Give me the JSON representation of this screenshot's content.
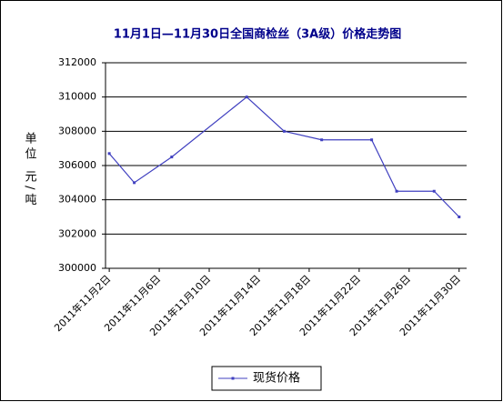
{
  "chart_data": {
    "type": "line",
    "title": "11月1日—11月30日全国商检丝（3A级）价格走势图",
    "y_label": "单位 元/吨",
    "xlim": [
      1.7,
      30.6
    ],
    "xticks": [
      {
        "value": 2,
        "label": "2011年11月2日"
      },
      {
        "value": 6,
        "label": "2011年11月6日"
      },
      {
        "value": 10,
        "label": "2011年11月10日"
      },
      {
        "value": 14,
        "label": "2011年11月14日"
      },
      {
        "value": 18,
        "label": "2011年11月18日"
      },
      {
        "value": 22,
        "label": "2011年11月22日"
      },
      {
        "value": 26,
        "label": "2011年11月26日"
      },
      {
        "value": 30,
        "label": "2011年11月30日"
      }
    ],
    "ylim": [
      300000,
      312000
    ],
    "yticks": [
      300000,
      302000,
      304000,
      306000,
      308000,
      310000,
      312000
    ],
    "grid": true,
    "legend": "bottom",
    "series": [
      {
        "name": "现货价格",
        "color": "#4040c0",
        "x": [
          2,
          4,
          7,
          13,
          16,
          19,
          23,
          25,
          28,
          30
        ],
        "values": [
          306700,
          305000,
          306500,
          310000,
          308000,
          307500,
          307500,
          304500,
          304500,
          303000
        ]
      }
    ]
  }
}
